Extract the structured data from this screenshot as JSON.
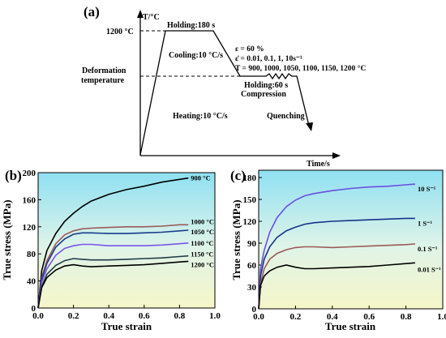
{
  "chart_data": [
    {
      "panel": "(a)",
      "type": "line",
      "ylabel": "T/°C",
      "xlabel": "Time/s",
      "y_tick_labels": [
        "1200 °C",
        "Deformation",
        "temperature"
      ],
      "annotations": {
        "holding1": "Holding:180 s",
        "cooling": "Cooling:10 °C/s",
        "heating": "Heating:10 °C/s",
        "holding2": "Holding:60 s",
        "compression": "Compression",
        "quenching": "Quenching",
        "eps": "ε = 60 %",
        "rate": "ε̇ = 0.01, 0.1, 1, 10s⁻¹",
        "temps": "T = 900, 1000, 1050, 1100, 1150, 1200 °C"
      }
    },
    {
      "panel": "(b)",
      "type": "line",
      "xlabel": "True strain",
      "ylabel": "True stress (MPa)",
      "xlim": [
        0,
        1.0
      ],
      "ylim": [
        0,
        200
      ],
      "x_ticks": [
        0.0,
        0.2,
        0.4,
        0.6,
        0.8,
        1.0
      ],
      "y_ticks": [
        0,
        40,
        80,
        120,
        160,
        200
      ],
      "series": [
        {
          "name": "900 °C",
          "color": "#000000",
          "x": [
            0,
            0.02,
            0.05,
            0.1,
            0.15,
            0.2,
            0.25,
            0.3,
            0.4,
            0.5,
            0.6,
            0.7,
            0.8,
            0.85
          ],
          "y": [
            0,
            55,
            85,
            110,
            128,
            140,
            150,
            158,
            168,
            175,
            180,
            186,
            190,
            192
          ]
        },
        {
          "name": "1000 °C",
          "color": "#9b5a5a",
          "x": [
            0,
            0.02,
            0.05,
            0.1,
            0.15,
            0.2,
            0.25,
            0.3,
            0.4,
            0.5,
            0.6,
            0.7,
            0.8,
            0.85
          ],
          "y": [
            0,
            45,
            70,
            95,
            108,
            114,
            117,
            118,
            119,
            120,
            120,
            121,
            123,
            123
          ]
        },
        {
          "name": "1050 °C",
          "color": "#1a3a8a",
          "x": [
            0,
            0.02,
            0.05,
            0.1,
            0.15,
            0.2,
            0.25,
            0.3,
            0.4,
            0.5,
            0.6,
            0.7,
            0.8,
            0.85
          ],
          "y": [
            0,
            42,
            66,
            90,
            102,
            109,
            111,
            111,
            110,
            110,
            111,
            112,
            114,
            115
          ]
        },
        {
          "name": "1100 °C",
          "color": "#7a55e8",
          "x": [
            0,
            0.02,
            0.05,
            0.1,
            0.15,
            0.2,
            0.25,
            0.3,
            0.4,
            0.5,
            0.6,
            0.7,
            0.8,
            0.85
          ],
          "y": [
            0,
            38,
            58,
            78,
            88,
            92,
            94,
            94,
            92,
            92,
            92,
            93,
            95,
            96
          ]
        },
        {
          "name": "1150 °C",
          "color": "#1f3d48",
          "x": [
            0,
            0.02,
            0.05,
            0.1,
            0.15,
            0.2,
            0.25,
            0.3,
            0.4,
            0.5,
            0.6,
            0.7,
            0.8,
            0.85
          ],
          "y": [
            0,
            32,
            50,
            63,
            70,
            73,
            72,
            71,
            71,
            72,
            73,
            74,
            76,
            77
          ]
        },
        {
          "name": "1200 °C",
          "color": "#000000",
          "x": [
            0,
            0.02,
            0.05,
            0.1,
            0.15,
            0.2,
            0.25,
            0.3,
            0.4,
            0.5,
            0.6,
            0.7,
            0.8,
            0.85
          ],
          "y": [
            0,
            30,
            45,
            56,
            62,
            64,
            62,
            61,
            62,
            63,
            64,
            66,
            68,
            69
          ]
        }
      ]
    },
    {
      "panel": "(c)",
      "type": "line",
      "xlabel": "True strain",
      "ylabel": "True stress (MPa)",
      "xlim": [
        0,
        1.0
      ],
      "ylim": [
        0,
        190
      ],
      "x_ticks": [
        0.0,
        0.2,
        0.4,
        0.6,
        0.8,
        1.0
      ],
      "y_ticks": [
        0,
        30,
        60,
        90,
        120,
        150,
        180
      ],
      "series": [
        {
          "name": "10 S⁻¹",
          "color": "#6b4fe0",
          "x": [
            0,
            0.01,
            0.03,
            0.06,
            0.1,
            0.15,
            0.2,
            0.25,
            0.3,
            0.4,
            0.5,
            0.6,
            0.7,
            0.8,
            0.85
          ],
          "y": [
            0,
            55,
            80,
            105,
            125,
            140,
            149,
            155,
            158,
            162,
            165,
            167,
            168,
            170,
            171
          ]
        },
        {
          "name": "1 S⁻¹",
          "color": "#15338a",
          "x": [
            0,
            0.01,
            0.03,
            0.06,
            0.1,
            0.15,
            0.2,
            0.25,
            0.3,
            0.4,
            0.5,
            0.6,
            0.7,
            0.8,
            0.85
          ],
          "y": [
            0,
            45,
            68,
            85,
            98,
            107,
            112,
            116,
            118,
            120,
            121,
            122,
            123,
            124,
            124
          ]
        },
        {
          "name": "0.1 S⁻¹",
          "color": "#9a5a5a",
          "x": [
            0,
            0.01,
            0.03,
            0.06,
            0.1,
            0.15,
            0.2,
            0.25,
            0.3,
            0.4,
            0.5,
            0.6,
            0.7,
            0.8,
            0.85
          ],
          "y": [
            0,
            35,
            55,
            68,
            76,
            81,
            84,
            85,
            85,
            84,
            85,
            86,
            87,
            88,
            89
          ]
        },
        {
          "name": "0.01 S⁻¹",
          "color": "#000000",
          "x": [
            0,
            0.01,
            0.03,
            0.06,
            0.1,
            0.15,
            0.2,
            0.25,
            0.3,
            0.4,
            0.5,
            0.6,
            0.7,
            0.8,
            0.85
          ],
          "y": [
            0,
            32,
            45,
            52,
            57,
            60,
            57,
            55,
            55,
            56,
            57,
            58,
            60,
            62,
            63
          ]
        }
      ]
    }
  ]
}
